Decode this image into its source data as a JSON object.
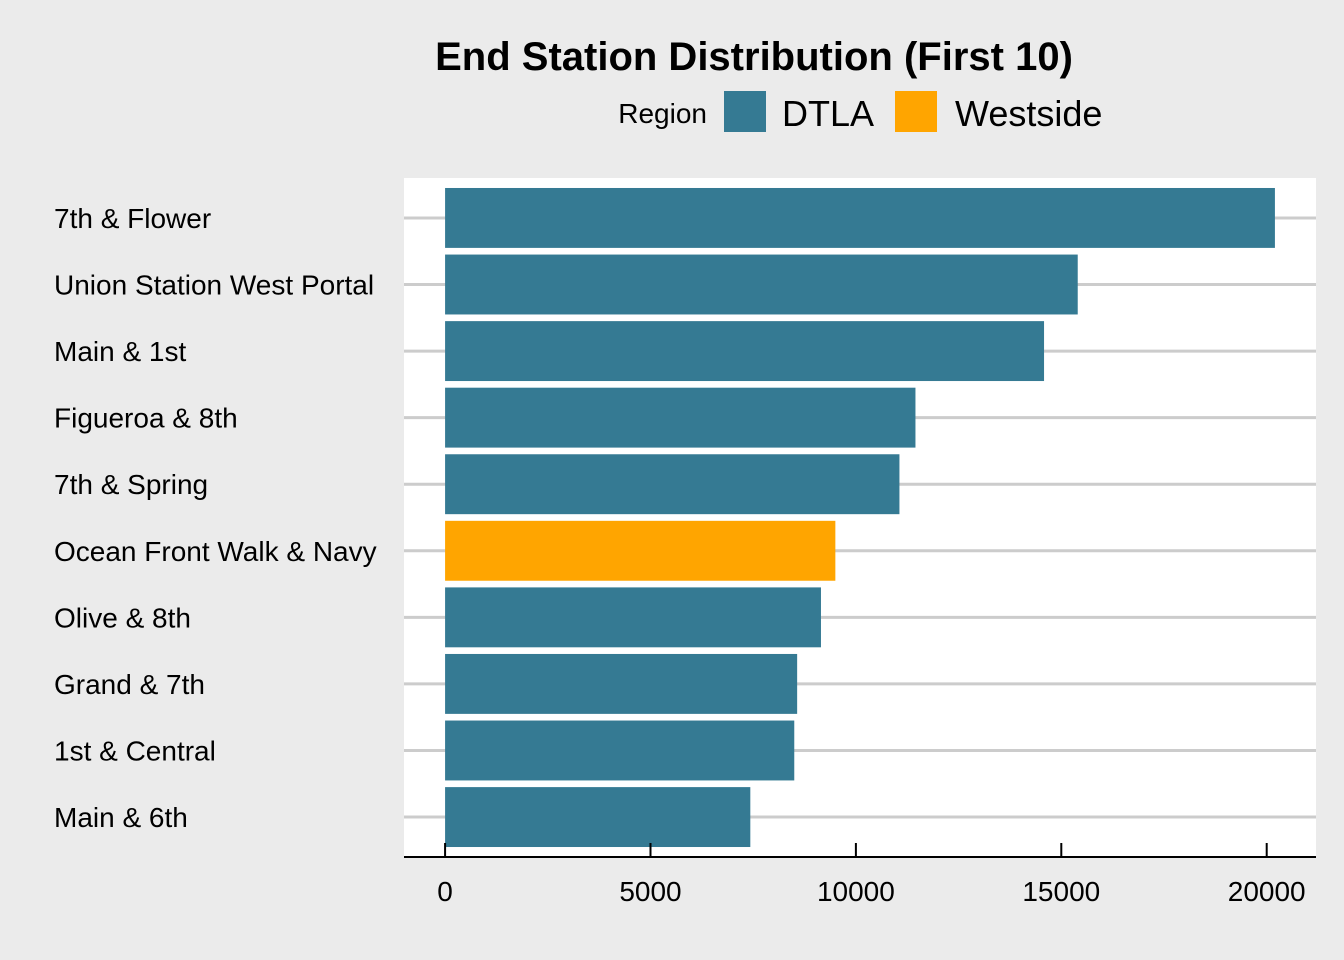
{
  "chart_data": {
    "type": "bar",
    "orientation": "horizontal",
    "title": "End Station Distribution (First 10)",
    "xlabel": "",
    "ylabel": "",
    "xlim": [
      -1000,
      21200
    ],
    "x_ticks": [
      0,
      5000,
      10000,
      15000,
      20000
    ],
    "grid": "major-horizontal",
    "legend": {
      "title": "Region",
      "placement": "top",
      "entries": [
        {
          "name": "DTLA",
          "color": "#357a93"
        },
        {
          "name": "Westside",
          "color": "#ffa500"
        }
      ]
    },
    "categories": [
      "7th & Flower",
      "Union Station West Portal",
      "Main & 1st",
      "Figueroa & 8th",
      "7th & Spring",
      "Ocean Front Walk & Navy",
      "Olive & 8th",
      "Grand & 7th",
      "1st & Central",
      "Main & 6th"
    ],
    "values": [
      20200,
      15400,
      14580,
      11450,
      11060,
      9500,
      9150,
      8570,
      8500,
      7430
    ],
    "regions": [
      "DTLA",
      "DTLA",
      "DTLA",
      "DTLA",
      "DTLA",
      "Westside",
      "DTLA",
      "DTLA",
      "DTLA",
      "DTLA"
    ]
  }
}
